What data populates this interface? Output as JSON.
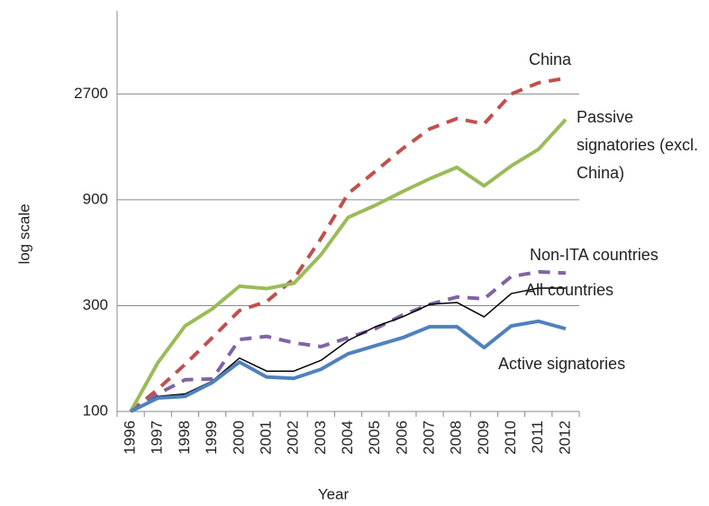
{
  "chart_data": {
    "type": "line",
    "x_label": "Year",
    "y_label": "log scale",
    "categories": [
      "1996",
      "1997",
      "1998",
      "1999",
      "2000",
      "2001",
      "2002",
      "2003",
      "2004",
      "2005",
      "2006",
      "2007",
      "2008",
      "2009",
      "2010",
      "2011",
      "2012"
    ],
    "ylog": true,
    "ylim": [
      100,
      6400
    ],
    "yticks": [
      100,
      300,
      900,
      2700
    ],
    "grid": true,
    "series": [
      {
        "name": "China",
        "color": "#c0504d",
        "dashed": true,
        "linewidth": 4,
        "values": [
          100,
          126,
          163,
          215,
          285,
          313,
          396,
          602,
          960,
          1210,
          1530,
          1880,
          2090,
          1980,
          2700,
          3030,
          3180
        ]
      },
      {
        "name": "Passive signatories (excl. China)",
        "color": "#9bbb59",
        "dashed": false,
        "linewidth": 4,
        "values": [
          100,
          166,
          243,
          290,
          367,
          358,
          378,
          509,
          750,
          850,
          980,
          1120,
          1260,
          1040,
          1280,
          1520,
          2070
        ]
      },
      {
        "name": "Non-ITA countries",
        "color": "#8064a2",
        "dashed": true,
        "linewidth": 4,
        "values": [
          100,
          120,
          139,
          140,
          211,
          218,
          204,
          196,
          215,
          236,
          272,
          304,
          328,
          322,
          406,
          426,
          421
        ]
      },
      {
        "name": "All countries",
        "color": "#000000",
        "dashed": false,
        "linewidth": 1.5,
        "values": [
          100,
          117,
          120,
          137,
          174,
          152,
          152,
          170,
          209,
          241,
          267,
          304,
          310,
          267,
          340,
          360,
          360
        ]
      },
      {
        "name": "Active signatories",
        "color": "#4f81bd",
        "dashed": false,
        "linewidth": 4,
        "values": [
          100,
          115,
          117,
          135,
          167,
          143,
          141,
          155,
          182,
          198,
          215,
          241,
          241,
          194,
          243,
          255,
          236
        ]
      }
    ]
  }
}
